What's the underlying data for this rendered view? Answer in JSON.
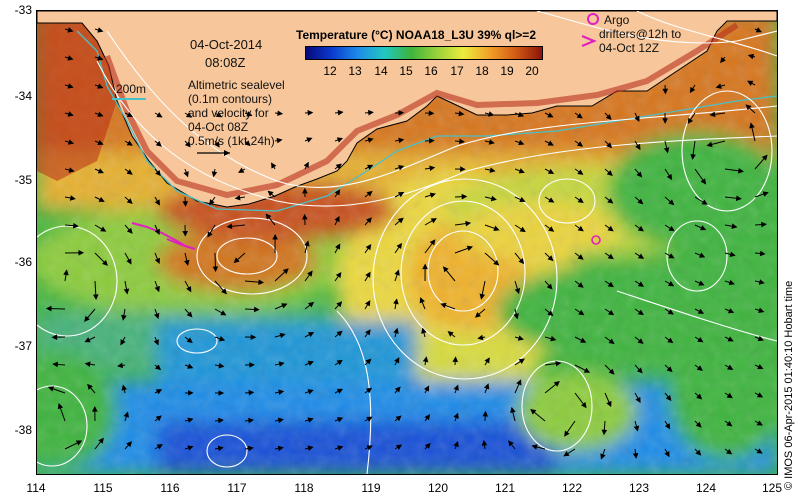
{
  "header": {
    "date": "04-Oct-2014",
    "time": "08:08Z",
    "colorbar_title": "Temperature (°C) NOAA18_L3U 39% ql>=2"
  },
  "colorbar": {
    "ticks": [
      "12",
      "13",
      "14",
      "15",
      "16",
      "17",
      "18",
      "19",
      "20"
    ],
    "colors": [
      "#08087a",
      "#0a3cd0",
      "#1e8ce8",
      "#22c8c0",
      "#3cb43c",
      "#9ad23a",
      "#ecec3c",
      "#f0a028",
      "#d25a14",
      "#8c140a"
    ]
  },
  "legend": {
    "contour_scale_label": "200m",
    "contour_line_color": "#49c0c8",
    "altimetry_note": [
      "Altimetric sealevel",
      "(0.1m contours)",
      "and velocity for",
      "04-Oct 08Z",
      "0.5m/s (1kt 24h)"
    ],
    "argo_label": "Argo",
    "drifter_note": [
      "drifters@12h to",
      "04-Oct 12Z"
    ],
    "argo_color": "#e020c0"
  },
  "axes": {
    "x_ticks": [
      "114",
      "115",
      "116",
      "117",
      "118",
      "119",
      "120",
      "121",
      "122",
      "123",
      "124",
      "125"
    ],
    "y_ticks": [
      "-33",
      "-34",
      "-35",
      "-36",
      "-37",
      "-38"
    ]
  },
  "credit": "© IMOS 06-Apr-2015 01:40:10 Hobart time",
  "colors": {
    "land": "#f7c79b",
    "contour": "#ffffff",
    "arrow": "#000000"
  }
}
